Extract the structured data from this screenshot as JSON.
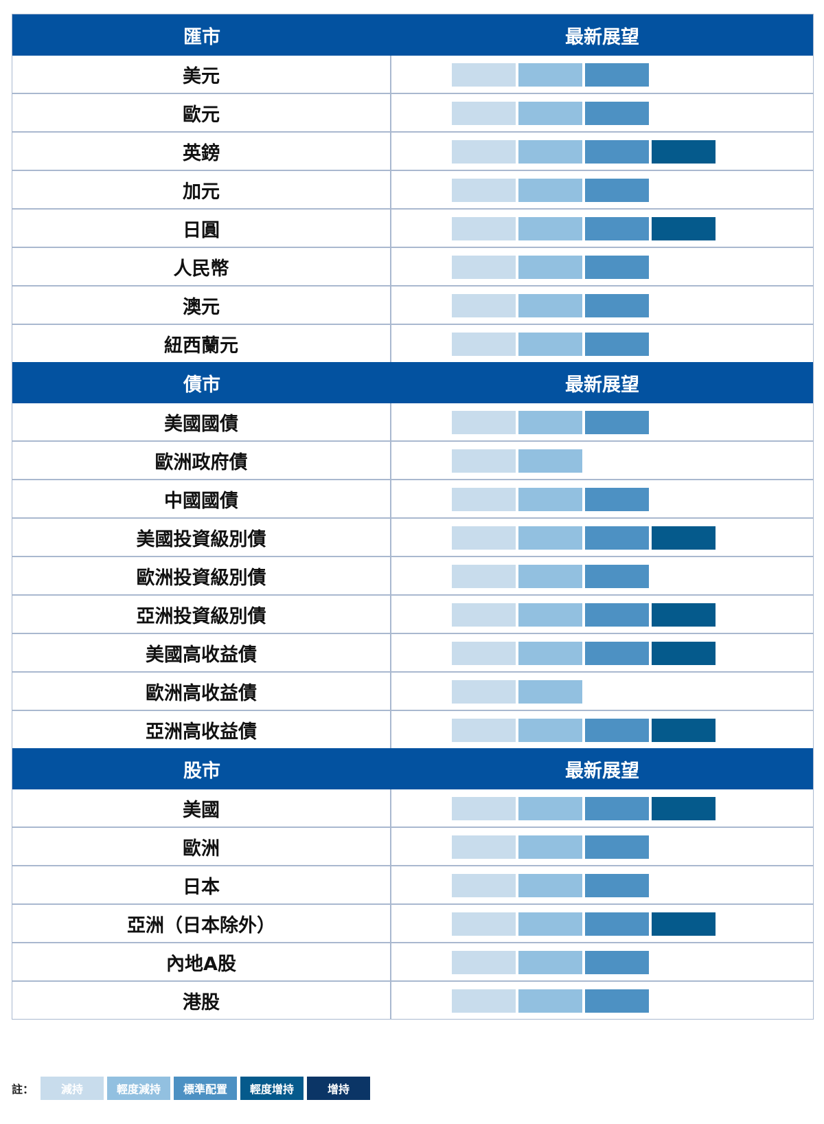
{
  "sections": [
    {
      "title": "匯市",
      "outlook_header": "最新展望",
      "rows": [
        {
          "name": "美元",
          "level": 3
        },
        {
          "name": "歐元",
          "level": 3
        },
        {
          "name": "英鎊",
          "level": 4
        },
        {
          "name": "加元",
          "level": 3
        },
        {
          "name": "日圓",
          "level": 4
        },
        {
          "name": "人民幣",
          "level": 3
        },
        {
          "name": "澳元",
          "level": 3
        },
        {
          "name": "紐西蘭元",
          "level": 3
        }
      ]
    },
    {
      "title": "債市",
      "outlook_header": "最新展望",
      "rows": [
        {
          "name": "美國國債",
          "level": 3
        },
        {
          "name": "歐洲政府債",
          "level": 2
        },
        {
          "name": "中國國債",
          "level": 3
        },
        {
          "name": "美國投資級別債",
          "level": 4
        },
        {
          "name": "歐洲投資級別債",
          "level": 3
        },
        {
          "name": "亞洲投資級別債",
          "level": 4
        },
        {
          "name": "美國高收益債",
          "level": 4
        },
        {
          "name": "歐洲高收益債",
          "level": 2
        },
        {
          "name": "亞洲高收益債",
          "level": 4
        }
      ]
    },
    {
      "title": "股市",
      "outlook_header": "最新展望",
      "rows": [
        {
          "name": "美國",
          "level": 4
        },
        {
          "name": "歐洲",
          "level": 3
        },
        {
          "name": "日本",
          "level": 3
        },
        {
          "name": "亞洲（日本除外）",
          "level": 4
        },
        {
          "name": "內地A股",
          "level": 3
        },
        {
          "name": "港股",
          "level": 3
        }
      ]
    }
  ],
  "level_colors": [
    "#c8dcec",
    "#92c0e0",
    "#4d91c3",
    "#055a8c",
    "#0b3566"
  ],
  "legend": {
    "note_label": "註：",
    "items": [
      {
        "label": "減持",
        "color": "#c8dcec"
      },
      {
        "label": "輕度減持",
        "color": "#92c0e0"
      },
      {
        "label": "標準配置",
        "color": "#4d91c3"
      },
      {
        "label": "輕度增持",
        "color": "#055a8c"
      },
      {
        "label": "增持",
        "color": "#0b3566"
      }
    ]
  }
}
